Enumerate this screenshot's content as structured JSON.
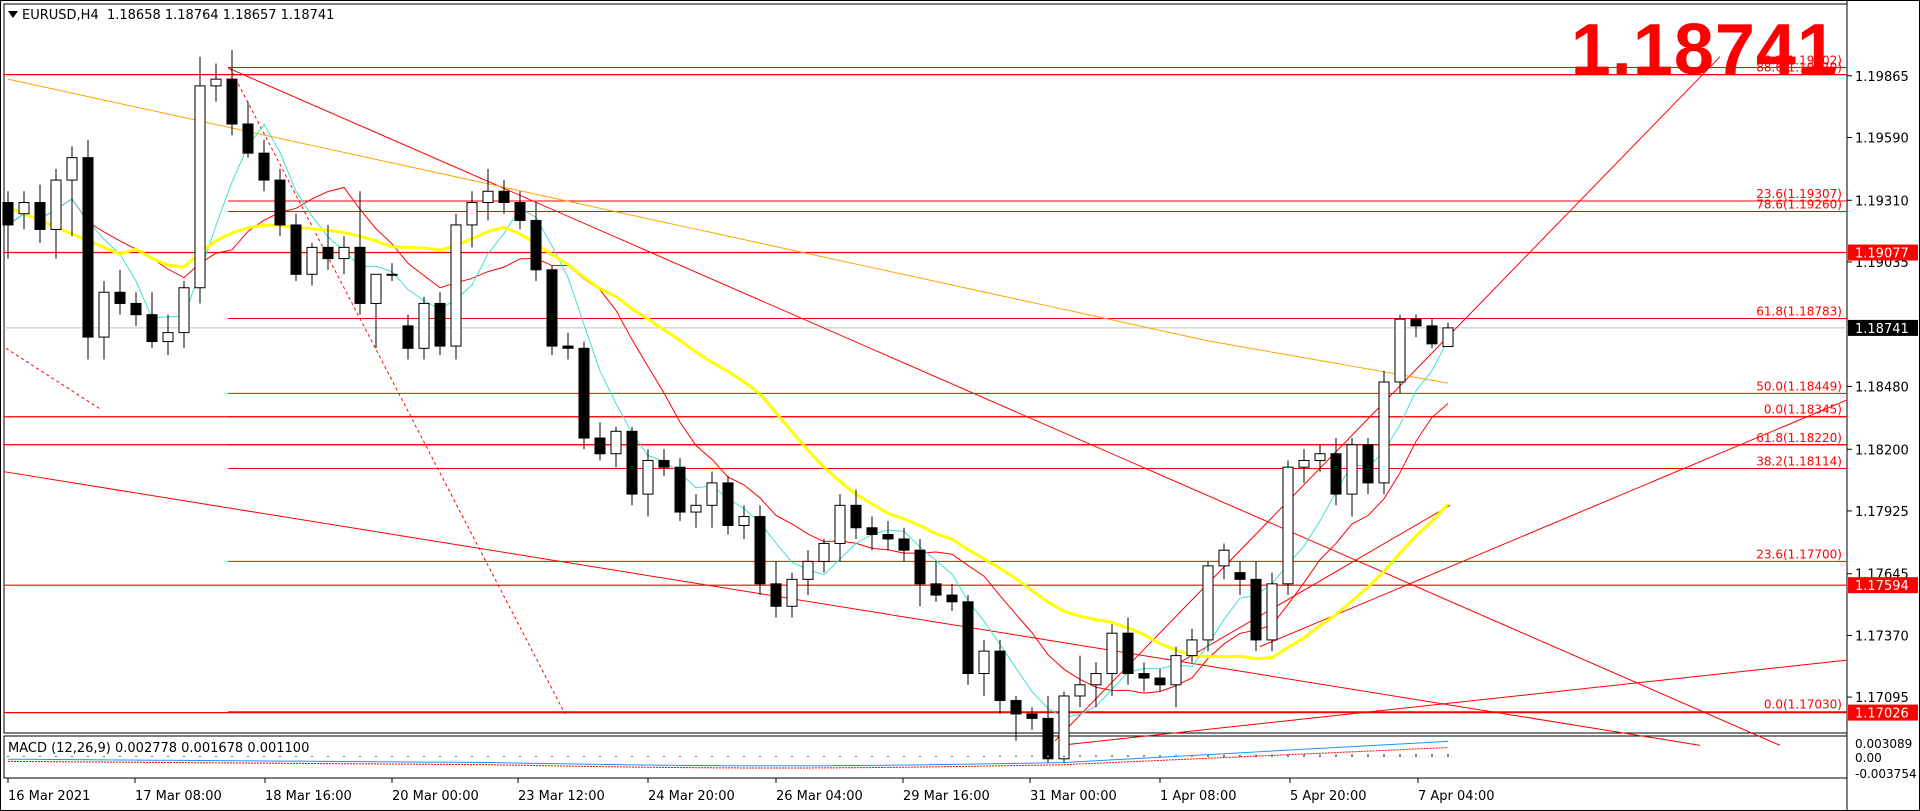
{
  "header": {
    "symbol": "EURUSD,H4",
    "ohlc": "1.18658 1.18764 1.18657 1.18741"
  },
  "big_price": "1.18741",
  "macd_label": "MACD (12,26,9) 0.002778 0.001678 0.001100",
  "colors": {
    "level": "#ff0000",
    "fast_ma": "#ffff00",
    "slow_ma": "#ffa500",
    "cyan_ma": "#40e0d0",
    "red_ma": "#ff0000",
    "macd_line": "#1e90ff"
  },
  "chart_data": {
    "type": "candlestick",
    "symbol": "EURUSD",
    "timeframe": "H4",
    "y_ticks": [
      "1.19865",
      "1.19590",
      "1.19310",
      "1.19035",
      "1.18480",
      "1.18200",
      "1.17925",
      "1.17645",
      "1.17370",
      "1.17095"
    ],
    "ylim": [
      1.16935,
      1.20185
    ],
    "x_ticks": [
      "16 Mar 2021",
      "17 Mar 08:00",
      "18 Mar 16:00",
      "20 Mar 00:00",
      "23 Mar 12:00",
      "24 Mar 20:00",
      "26 Mar 04:00",
      "29 Mar 16:00",
      "31 Mar 00:00",
      "1 Apr 08:00",
      "5 Apr 20:00",
      "7 Apr 04:00"
    ],
    "price_tags": [
      {
        "label": "1.19077",
        "value": 1.19077,
        "style": "red"
      },
      {
        "label": "1.18741",
        "value": 1.18741,
        "style": "current"
      },
      {
        "label": "1.17594",
        "value": 1.17594,
        "style": "red"
      },
      {
        "label": "1.17026",
        "value": 1.17026,
        "style": "red"
      }
    ],
    "fib_levels": [
      {
        "label": "38.2(1.19902)",
        "value": 1.19902
      },
      {
        "label": "88.6(1.19870)",
        "value": 1.1987
      },
      {
        "label": "23.6(1.19307)",
        "value": 1.19307
      },
      {
        "label": "78.6(1.19260)",
        "value": 1.1926
      },
      {
        "label": "61.8(1.18783)",
        "value": 1.18783
      },
      {
        "label": "50.0(1.18449)",
        "value": 1.18449
      },
      {
        "label": "0.0(1.18345)",
        "value": 1.18345
      },
      {
        "label": "61.8(1.18220)",
        "value": 1.1822
      },
      {
        "label": "38.2(1.18114)",
        "value": 1.18114
      },
      {
        "label": "23.6(1.17700)",
        "value": 1.177
      },
      {
        "label": "0.0(1.17030)",
        "value": 1.1703
      }
    ],
    "full_levels": [
      1.1987,
      1.19077,
      1.18345,
      1.1822,
      1.17594,
      1.17026
    ],
    "candles": [
      [
        1.193,
        1.1935,
        1.1905,
        1.192
      ],
      [
        1.1925,
        1.1935,
        1.1918,
        1.193
      ],
      [
        1.193,
        1.1938,
        1.1912,
        1.1918
      ],
      [
        1.1918,
        1.1945,
        1.1905,
        1.194
      ],
      [
        1.194,
        1.1955,
        1.1915,
        1.195
      ],
      [
        1.195,
        1.1958,
        1.186,
        1.187
      ],
      [
        1.187,
        1.1895,
        1.186,
        1.189
      ],
      [
        1.189,
        1.19,
        1.188,
        1.1885
      ],
      [
        1.1885,
        1.189,
        1.1875,
        1.188
      ],
      [
        1.188,
        1.189,
        1.1865,
        1.1868
      ],
      [
        1.1868,
        1.188,
        1.1862,
        1.1872
      ],
      [
        1.1872,
        1.1895,
        1.1865,
        1.1892
      ],
      [
        1.1892,
        1.1995,
        1.1885,
        1.1982
      ],
      [
        1.1982,
        1.1992,
        1.1975,
        1.1985
      ],
      [
        1.1985,
        1.1998,
        1.196,
        1.1965
      ],
      [
        1.1965,
        1.1975,
        1.195,
        1.1952
      ],
      [
        1.1952,
        1.1958,
        1.1935,
        1.194
      ],
      [
        1.194,
        1.1945,
        1.1915,
        1.192
      ],
      [
        1.192,
        1.1925,
        1.1895,
        1.1898
      ],
      [
        1.1898,
        1.1912,
        1.1893,
        1.191
      ],
      [
        1.191,
        1.192,
        1.19,
        1.1905
      ],
      [
        1.1905,
        1.1915,
        1.1898,
        1.191
      ],
      [
        1.191,
        1.1935,
        1.188,
        1.1885
      ],
      [
        1.1885,
        1.1895,
        1.1865,
        1.1898
      ],
      [
        1.1898,
        1.1903,
        1.1895,
        1.1898
      ],
      [
        1.1875,
        1.188,
        1.186,
        1.1865
      ],
      [
        1.1865,
        1.1888,
        1.186,
        1.1885
      ],
      [
        1.1885,
        1.189,
        1.1862,
        1.1866
      ],
      [
        1.1866,
        1.1925,
        1.186,
        1.192
      ],
      [
        1.192,
        1.1935,
        1.191,
        1.193
      ],
      [
        1.193,
        1.1945,
        1.1922,
        1.1935
      ],
      [
        1.1935,
        1.194,
        1.1925,
        1.193
      ],
      [
        1.193,
        1.1935,
        1.1918,
        1.1922
      ],
      [
        1.1922,
        1.193,
        1.1895,
        1.19
      ],
      [
        1.19,
        1.1902,
        1.1862,
        1.1866
      ],
      [
        1.1866,
        1.1872,
        1.186,
        1.1865
      ],
      [
        1.1865,
        1.1868,
        1.182,
        1.1825
      ],
      [
        1.1825,
        1.1832,
        1.1815,
        1.1818
      ],
      [
        1.1818,
        1.183,
        1.1812,
        1.1828
      ],
      [
        1.1828,
        1.183,
        1.1795,
        1.18
      ],
      [
        1.18,
        1.182,
        1.179,
        1.1815
      ],
      [
        1.1815,
        1.182,
        1.1808,
        1.1812
      ],
      [
        1.1812,
        1.1816,
        1.1788,
        1.1792
      ],
      [
        1.1792,
        1.18,
        1.1785,
        1.1795
      ],
      [
        1.1795,
        1.181,
        1.1785,
        1.1805
      ],
      [
        1.1805,
        1.1808,
        1.1782,
        1.1786
      ],
      [
        1.1786,
        1.1795,
        1.178,
        1.179
      ],
      [
        1.179,
        1.1795,
        1.1755,
        1.176
      ],
      [
        1.176,
        1.177,
        1.1745,
        1.175
      ],
      [
        1.175,
        1.1765,
        1.1745,
        1.1762
      ],
      [
        1.1762,
        1.1775,
        1.1755,
        1.177
      ],
      [
        1.177,
        1.178,
        1.1765,
        1.1778
      ],
      [
        1.1778,
        1.18,
        1.177,
        1.1795
      ],
      [
        1.1795,
        1.1802,
        1.178,
        1.1785
      ],
      [
        1.1785,
        1.179,
        1.1775,
        1.1782
      ],
      [
        1.1782,
        1.1788,
        1.1775,
        1.178
      ],
      [
        1.178,
        1.1785,
        1.177,
        1.1775
      ],
      [
        1.1775,
        1.178,
        1.175,
        1.176
      ],
      [
        1.176,
        1.177,
        1.1752,
        1.1755
      ],
      [
        1.1755,
        1.176,
        1.1748,
        1.1752
      ],
      [
        1.1752,
        1.1755,
        1.1715,
        1.172
      ],
      [
        1.172,
        1.1735,
        1.171,
        1.173
      ],
      [
        1.173,
        1.1735,
        1.1702,
        1.1708
      ],
      [
        1.1708,
        1.171,
        1.169,
        1.1702
      ],
      [
        1.1702,
        1.1705,
        1.1695,
        1.17
      ],
      [
        1.17,
        1.171,
        1.168,
        1.1682
      ],
      [
        1.1682,
        1.1712,
        1.168,
        1.171
      ],
      [
        1.171,
        1.1728,
        1.1705,
        1.1715
      ],
      [
        1.1715,
        1.1725,
        1.1705,
        1.172
      ],
      [
        1.172,
        1.1742,
        1.171,
        1.1738
      ],
      [
        1.1738,
        1.1745,
        1.1715,
        1.172
      ],
      [
        1.172,
        1.1725,
        1.1712,
        1.1718
      ],
      [
        1.1718,
        1.1722,
        1.1712,
        1.1715
      ],
      [
        1.1715,
        1.1732,
        1.1705,
        1.1728
      ],
      [
        1.1728,
        1.174,
        1.1725,
        1.1735
      ],
      [
        1.1735,
        1.177,
        1.173,
        1.1768
      ],
      [
        1.1768,
        1.1778,
        1.1762,
        1.1775
      ],
      [
        1.1765,
        1.177,
        1.1755,
        1.1762
      ],
      [
        1.1762,
        1.177,
        1.173,
        1.1735
      ],
      [
        1.1735,
        1.1765,
        1.173,
        1.176
      ],
      [
        1.176,
        1.1815,
        1.1755,
        1.1812
      ],
      [
        1.1812,
        1.182,
        1.1805,
        1.1815
      ],
      [
        1.1815,
        1.1822,
        1.181,
        1.1818
      ],
      [
        1.1818,
        1.1825,
        1.1795,
        1.18
      ],
      [
        1.18,
        1.1825,
        1.179,
        1.1822
      ],
      [
        1.1822,
        1.1825,
        1.18,
        1.1805
      ],
      [
        1.1805,
        1.1855,
        1.18,
        1.185
      ],
      [
        1.185,
        1.188,
        1.1845,
        1.1878
      ],
      [
        1.1878,
        1.188,
        1.187,
        1.1875
      ],
      [
        1.1875,
        1.1878,
        1.1865,
        1.1867
      ],
      [
        1.18658,
        1.18764,
        1.18657,
        1.18741
      ]
    ],
    "macd_axis": [
      "0.003089",
      "0.00",
      "-0.003754"
    ]
  }
}
